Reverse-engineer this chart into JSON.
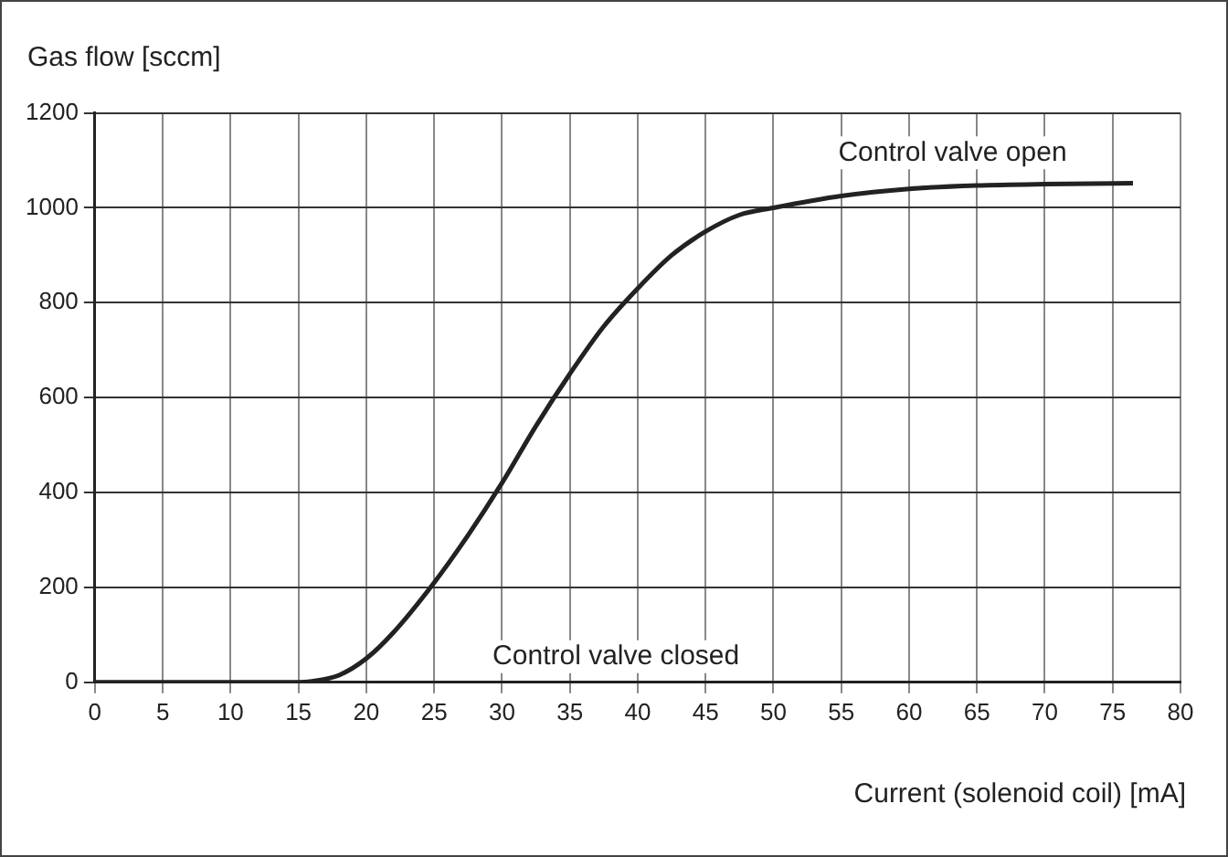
{
  "chart_data": {
    "type": "line",
    "ylabel": "Gas flow [sccm]",
    "xlabel": "Current (solenoid coil) [mA]",
    "x": [
      0,
      5,
      10,
      15,
      16,
      18,
      20,
      22,
      25,
      27.5,
      30,
      32.5,
      35,
      37.5,
      40,
      42.5,
      45,
      47.5,
      50,
      55,
      60,
      65,
      70,
      76.5
    ],
    "series": [
      {
        "color": "#222222",
        "values": [
          0,
          0,
          0,
          0,
          2,
          15,
          50,
          105,
          210,
          310,
          420,
          540,
          650,
          750,
          830,
          900,
          950,
          985,
          1000,
          1025,
          1040,
          1047,
          1050,
          1052
        ]
      }
    ],
    "xlim": [
      0,
      80
    ],
    "xticks": [
      0,
      5,
      10,
      15,
      20,
      25,
      30,
      35,
      40,
      45,
      50,
      55,
      60,
      65,
      70,
      75,
      80
    ],
    "ylim": [
      0,
      1200
    ],
    "yticks": [
      0,
      200,
      400,
      600,
      800,
      1000,
      1200
    ],
    "grid": true,
    "legend": false,
    "marker": "none",
    "line_style": "solid",
    "annotations": [
      "Control valve closed",
      "Control valve open"
    ]
  }
}
